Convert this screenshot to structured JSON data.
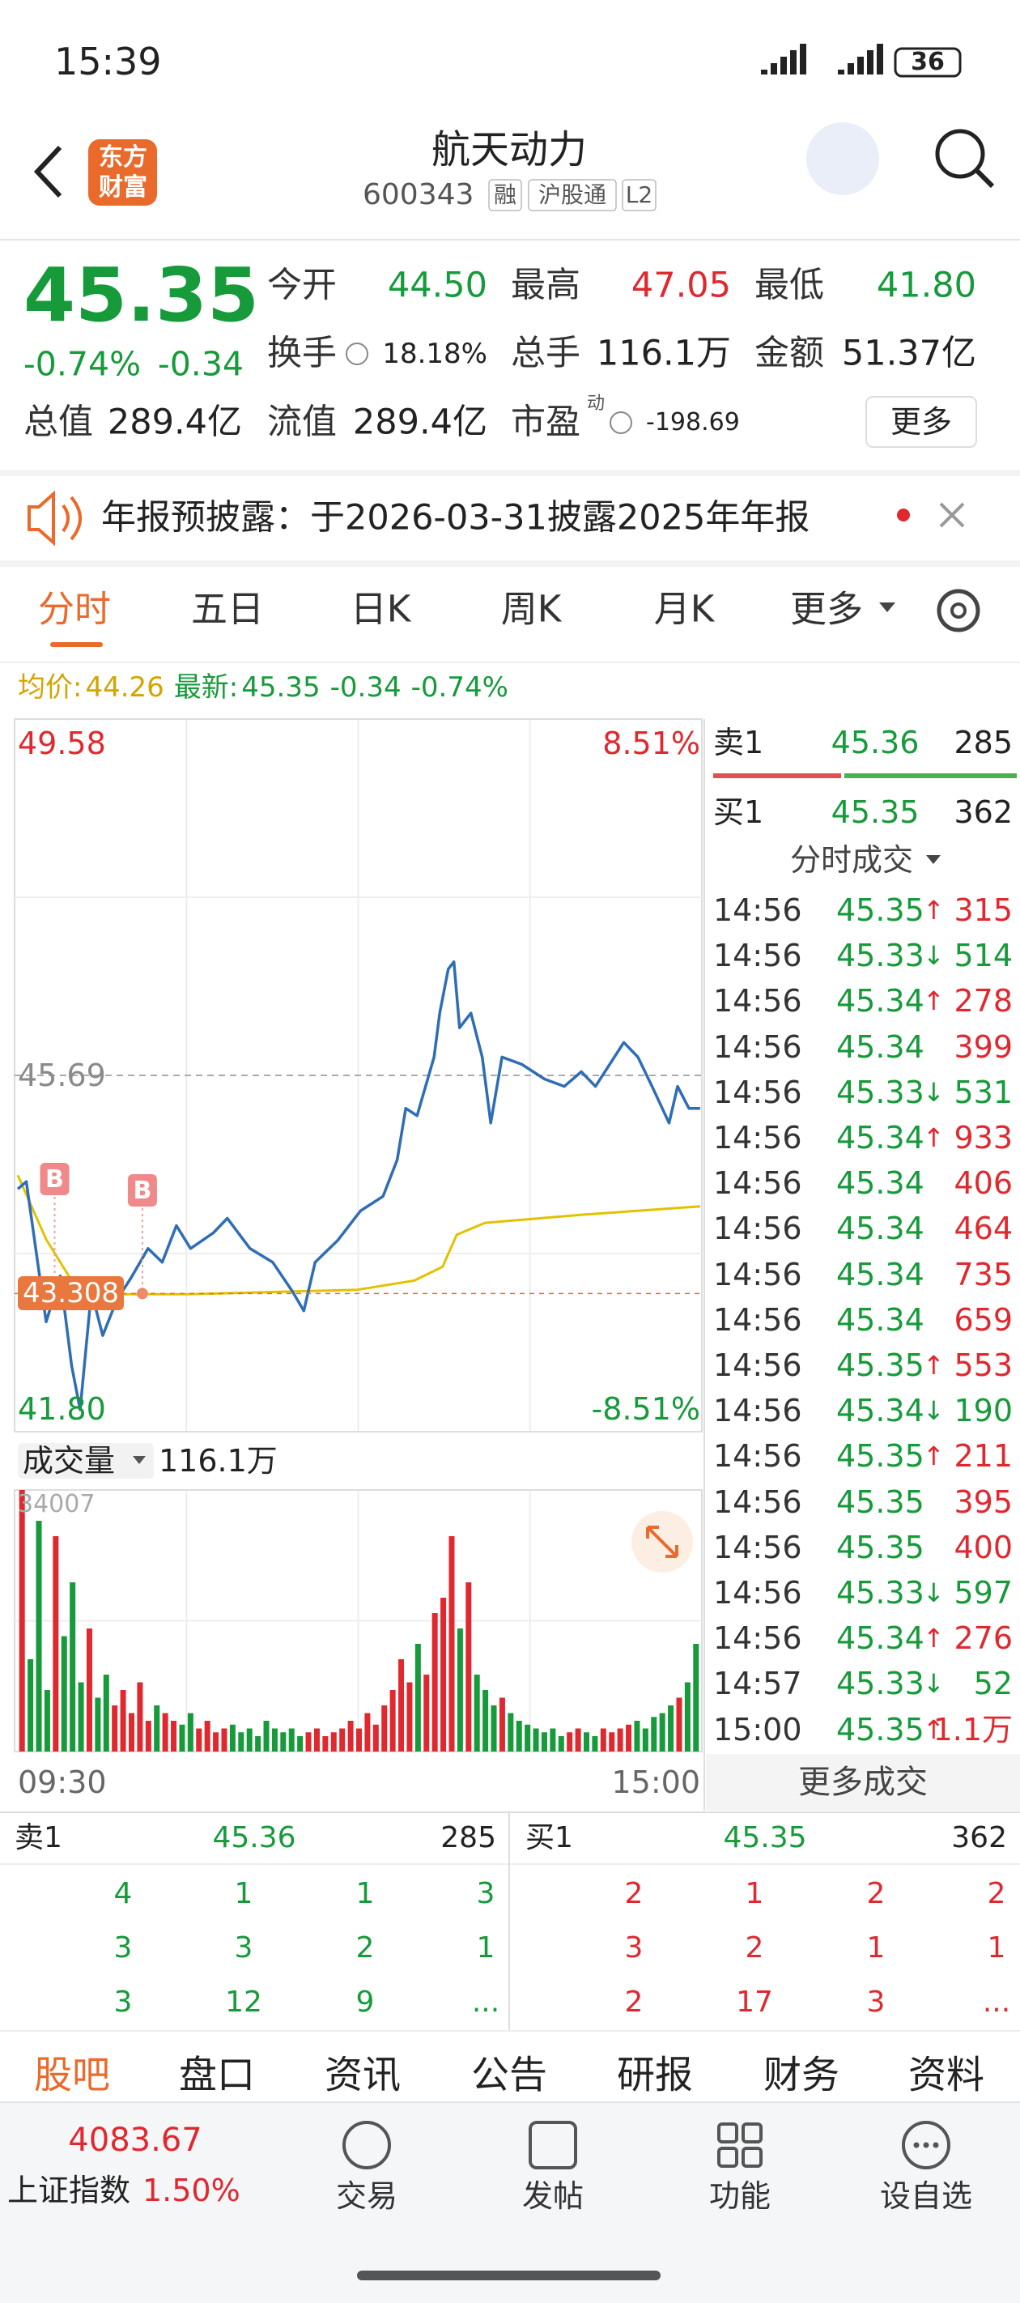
{
  "status_bar": {
    "time": "15:39",
    "battery": "36"
  },
  "header": {
    "logo": [
      "东方",
      "财富"
    ],
    "title": "航天动力",
    "code": "600343",
    "badges": [
      "融",
      "沪股通",
      "L2"
    ]
  },
  "quote": {
    "price": "45.35",
    "change_pct": "-0.74%",
    "change": "-0.34",
    "stats": [
      [
        {
          "label": "今开",
          "value": "44.50",
          "tone": "down"
        },
        {
          "label": "最高",
          "value": "47.05",
          "tone": "up"
        },
        {
          "label": "最低",
          "value": "41.80",
          "tone": "down"
        }
      ],
      [
        {
          "label": "换手",
          "value": "18.18%"
        },
        {
          "label": "总手",
          "value": "116.1万"
        },
        {
          "label": "金额",
          "value": "51.37亿"
        }
      ],
      [
        {
          "label": "总值",
          "value": "289.4亿"
        },
        {
          "label": "流值",
          "value": "289.4亿"
        }
      ]
    ],
    "pe_label": "市盈",
    "pe_sup": "动",
    "pe_value": "-198.69",
    "more": "更多"
  },
  "notice": "年报预披露：于2026-03-31披露2025年年报",
  "tabs": [
    "分时",
    "五日",
    "日K",
    "周K",
    "月K",
    "更多"
  ],
  "info": {
    "avg_label": "均价:",
    "avg": "44.26",
    "last_label": "最新:",
    "last": "45.35",
    "change": "-0.34",
    "change_pct": "-0.74%"
  },
  "chart": {
    "ylim": [
      41.8,
      49.58
    ],
    "yticks": [
      {
        "value": 49.58,
        "label": "49.58"
      },
      {
        "value": 45.69,
        "label": "45.69"
      },
      {
        "value": 41.8,
        "label": "41.80"
      }
    ],
    "pct_labels": [
      "8.51%",
      "-8.51%"
    ],
    "xlim": [
      0,
      241
    ],
    "time_labels": [
      "09:30",
      "15:00"
    ],
    "price_line": {
      "color": "#2f6db5",
      "x": [
        0,
        3,
        7,
        10,
        15,
        19,
        22,
        26,
        30,
        35,
        40,
        46,
        51,
        56,
        61,
        69,
        74,
        82,
        90,
        97,
        101,
        105,
        113,
        121,
        129,
        134,
        137,
        141,
        147,
        149,
        152,
        154,
        156,
        160,
        164,
        167,
        171,
        178,
        186,
        193,
        199,
        204,
        209,
        214,
        219,
        224,
        230,
        233,
        237,
        241
      ],
      "values": [
        44.45,
        44.53,
        43.65,
        43.0,
        43.5,
        42.52,
        42.04,
        43.33,
        42.85,
        43.24,
        43.48,
        43.8,
        43.65,
        44.05,
        43.8,
        43.97,
        44.13,
        43.8,
        43.65,
        43.33,
        43.12,
        43.65,
        43.89,
        44.21,
        44.37,
        44.77,
        45.33,
        45.25,
        45.89,
        46.37,
        46.85,
        46.93,
        46.21,
        46.37,
        45.89,
        45.17,
        45.89,
        45.81,
        45.65,
        45.57,
        45.73,
        45.57,
        45.81,
        46.05,
        45.89,
        45.57,
        45.17,
        45.57,
        45.33,
        45.33
      ]
    },
    "avg_line": {
      "color": "#e2c200",
      "x": [
        0,
        10,
        20,
        30,
        60,
        120,
        140,
        150,
        155,
        165,
        200,
        241
      ],
      "values": [
        44.6,
        43.9,
        43.4,
        43.3,
        43.3,
        43.35,
        43.45,
        43.6,
        43.95,
        44.08,
        44.17,
        44.26
      ]
    },
    "cost_line": 43.308,
    "markers": [
      {
        "label": "B",
        "x": 13
      },
      {
        "label": "B",
        "x": 44
      }
    ],
    "volume_label": "成交量",
    "volume_total": "116.1万",
    "vlim": [
      0,
      34007
    ],
    "vticks": [
      34007
    ],
    "volumes": [
      34007,
      12000,
      30000,
      8000,
      28000,
      15000,
      22000,
      9000,
      16000,
      7000,
      10000,
      6000,
      8000,
      5000,
      9000,
      4000,
      6000,
      5000,
      4000,
      3500,
      5000,
      3000,
      4000,
      2500,
      3000,
      3500,
      2500,
      3000,
      2000,
      4000,
      3000,
      2500,
      3000,
      2000,
      2500,
      3000,
      2000,
      2500,
      3000,
      4000,
      3000,
      5000,
      3500,
      6000,
      8000,
      12000,
      9000,
      14000,
      10000,
      18000,
      20000,
      28000,
      16000,
      22000,
      10000,
      8000,
      6000,
      7000,
      5000,
      4000,
      3500,
      3000,
      2500,
      3000,
      2000,
      2500,
      3000,
      2500,
      2000,
      3000,
      2500,
      3000,
      3500,
      4000,
      3000,
      4500,
      5000,
      6000,
      7000,
      9000,
      14000
    ]
  },
  "depth": {
    "sell": {
      "label": "卖1",
      "price": "45.36",
      "volume": "285"
    },
    "buy": {
      "label": "买1",
      "price": "45.35",
      "volume": "362"
    }
  },
  "trades_title": "分时成交",
  "trades": [
    {
      "time": "14:56",
      "price": "45.35",
      "arrow": "↑",
      "volume": "315"
    },
    {
      "time": "14:56",
      "price": "45.33",
      "arrow": "↓",
      "volume": "514"
    },
    {
      "time": "14:56",
      "price": "45.34",
      "arrow": "↑",
      "volume": "278"
    },
    {
      "time": "14:56",
      "price": "45.34",
      "volume": "399"
    },
    {
      "time": "14:56",
      "price": "45.33",
      "arrow": "↓",
      "volume": "531"
    },
    {
      "time": "14:56",
      "price": "45.34",
      "arrow": "↑",
      "volume": "933"
    },
    {
      "time": "14:56",
      "price": "45.34",
      "volume": "406"
    },
    {
      "time": "14:56",
      "price": "45.34",
      "volume": "464"
    },
    {
      "time": "14:56",
      "price": "45.34",
      "volume": "735"
    },
    {
      "time": "14:56",
      "price": "45.34",
      "volume": "659"
    },
    {
      "time": "14:56",
      "price": "45.35",
      "arrow": "↑",
      "volume": "553"
    },
    {
      "time": "14:56",
      "price": "45.34",
      "arrow": "↓",
      "volume": "190"
    },
    {
      "time": "14:56",
      "price": "45.35",
      "arrow": "↑",
      "volume": "211"
    },
    {
      "time": "14:56",
      "price": "45.35",
      "volume": "395"
    },
    {
      "time": "14:56",
      "price": "45.35",
      "volume": "400"
    },
    {
      "time": "14:56",
      "price": "45.33",
      "arrow": "↓",
      "volume": "597"
    },
    {
      "time": "14:56",
      "price": "45.34",
      "arrow": "↑",
      "volume": "276"
    },
    {
      "time": "14:57",
      "price": "45.33",
      "arrow": "↓",
      "volume": "52"
    },
    {
      "time": "15:00",
      "price": "45.35",
      "arrow": "↑",
      "volume": "1.1万"
    }
  ],
  "more_trades": "更多成交",
  "order_book": {
    "sell": {
      "label": "卖1",
      "price": "45.36",
      "volume": "285",
      "levels": [
        [
          "4",
          "1",
          "1",
          "3"
        ],
        [
          "3",
          "3",
          "2",
          "1"
        ],
        [
          "3",
          "12",
          "9",
          "..."
        ]
      ]
    },
    "buy": {
      "label": "买1",
      "price": "45.35",
      "volume": "362",
      "levels": [
        [
          "2",
          "1",
          "2",
          "2"
        ],
        [
          "3",
          "2",
          "1",
          "1"
        ],
        [
          "2",
          "17",
          "3",
          "..."
        ]
      ]
    }
  },
  "section_tabs": [
    "股吧",
    "盘口",
    "资讯",
    "公告",
    "研报",
    "财务",
    "资料"
  ],
  "nav": {
    "index_value": "4083.67",
    "index_name": "上证指数",
    "index_change": "1.50%",
    "buttons": [
      "交易",
      "发帖",
      "功能",
      "设自选"
    ]
  }
}
